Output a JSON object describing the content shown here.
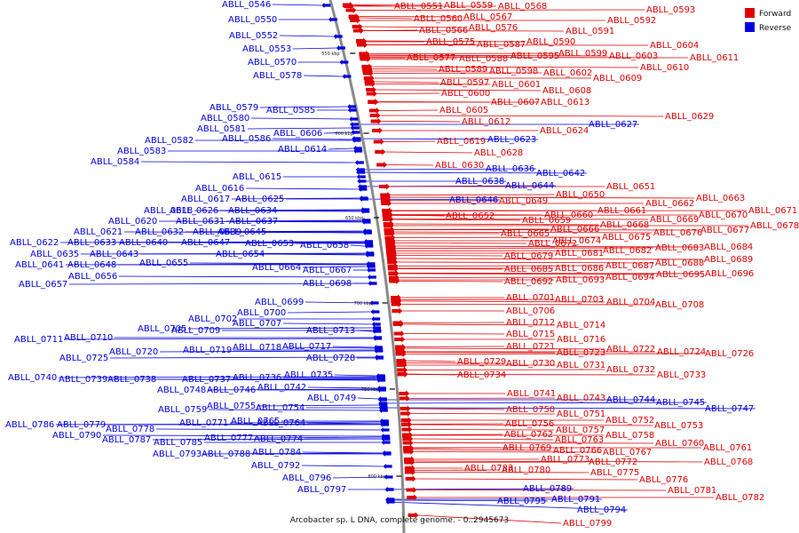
{
  "caption": "Arcobacter sp. L DNA, complete genome. - 0..2945673",
  "legend": {
    "forward": "Forward",
    "reverse": "Reverse"
  },
  "colors": {
    "forward": "#e00000",
    "reverse": "#0000e0",
    "backbone": "#888888"
  },
  "ticks": [
    "550 kbp",
    "600 kbp",
    "650 kbp",
    "700 kbp",
    "750 kbp",
    "800 kbp"
  ],
  "reverse_genes": [
    {
      "label": "ABLL_0546"
    },
    {
      "label": "ABLL_0550"
    },
    {
      "label": "ABLL_0552"
    },
    {
      "label": "ABLL_0553"
    },
    {
      "label": "ABLL_0570"
    },
    {
      "label": "ABLL_0578"
    },
    {
      "label": "ABLL_0579"
    },
    {
      "label": "ABLL_0585"
    },
    {
      "label": "ABLL_0580"
    },
    {
      "label": "ABLL_0581"
    },
    {
      "label": "ABLL_0582"
    },
    {
      "label": "ABLL_0586"
    },
    {
      "label": "ABLL_0606"
    },
    {
      "label": "ABLL_0583"
    },
    {
      "label": "ABLL_0584"
    },
    {
      "label": "ABLL_0614"
    },
    {
      "label": "ABLL_0615"
    },
    {
      "label": "ABLL_0616"
    },
    {
      "label": "ABLL_0617"
    },
    {
      "label": "ABLL_0625"
    },
    {
      "label": "ABLL_0618"
    },
    {
      "label": "ABLL_0626"
    },
    {
      "label": "ABLL_0634"
    },
    {
      "label": "ABLL_0620"
    },
    {
      "label": "ABLL_0631"
    },
    {
      "label": "ABLL_0637"
    },
    {
      "label": "ABLL_0621"
    },
    {
      "label": "ABLL_0632"
    },
    {
      "label": "ABLL_0639"
    },
    {
      "label": "ABLL_0645"
    },
    {
      "label": "ABLL_0622"
    },
    {
      "label": "ABLL_0633"
    },
    {
      "label": "ABLL_0640"
    },
    {
      "label": "ABLL_0647"
    },
    {
      "label": "ABLL_0653"
    },
    {
      "label": "ABLL_0658"
    },
    {
      "label": "ABLL_0635"
    },
    {
      "label": "ABLL_0643"
    },
    {
      "label": "ABLL_0654"
    },
    {
      "label": "ABLL_0641"
    },
    {
      "label": "ABLL_0648"
    },
    {
      "label": "ABLL_0655"
    },
    {
      "label": "ABLL_0664"
    },
    {
      "label": "ABLL_0667"
    },
    {
      "label": "ABLL_0656"
    },
    {
      "label": "ABLL_0657"
    },
    {
      "label": "ABLL_0698"
    },
    {
      "label": "ABLL_0699"
    },
    {
      "label": "ABLL_0700"
    },
    {
      "label": "ABLL_0702"
    },
    {
      "label": "ABLL_0707"
    },
    {
      "label": "ABLL_0705"
    },
    {
      "label": "ABLL_0709"
    },
    {
      "label": "ABLL_0713"
    },
    {
      "label": "ABLL_0711"
    },
    {
      "label": "ABLL_0710"
    },
    {
      "label": "ABLL_0717"
    },
    {
      "label": "ABLL_0720"
    },
    {
      "label": "ABLL_0719"
    },
    {
      "label": "ABLL_0718"
    },
    {
      "label": "ABLL_0725"
    },
    {
      "label": "ABLL_0728"
    },
    {
      "label": "ABLL_0735"
    },
    {
      "label": "ABLL_0740"
    },
    {
      "label": "ABLL_0739"
    },
    {
      "label": "ABLL_0738"
    },
    {
      "label": "ABLL_0737"
    },
    {
      "label": "ABLL_0736"
    },
    {
      "label": "ABLL_0742"
    },
    {
      "label": "ABLL_0748"
    },
    {
      "label": "ABLL_0746"
    },
    {
      "label": "ABLL_0749"
    },
    {
      "label": "ABLL_0755"
    },
    {
      "label": "ABLL_0754"
    },
    {
      "label": "ABLL_0759"
    },
    {
      "label": "ABLL_0771"
    },
    {
      "label": "ABLL_0765"
    },
    {
      "label": "ABLL_0764"
    },
    {
      "label": "ABLL_0786"
    },
    {
      "label": "ABLL_0779"
    },
    {
      "label": "ABLL_0778"
    },
    {
      "label": "ABLL_0777"
    },
    {
      "label": "ABLL_0774"
    },
    {
      "label": "ABLL_0790"
    },
    {
      "label": "ABLL_0787"
    },
    {
      "label": "ABLL_0785"
    },
    {
      "label": "ABLL_0784"
    },
    {
      "label": "ABLL_0793"
    },
    {
      "label": "ABLL_0788"
    },
    {
      "label": "ABLL_0792"
    },
    {
      "label": "ABLL_0796"
    },
    {
      "label": "ABLL_0797"
    },
    {
      "label": "ABLL_0789"
    },
    {
      "label": "ABLL_0795"
    },
    {
      "label": "ABLL_0791"
    },
    {
      "label": "ABLL_0794"
    },
    {
      "label": "ABLL_0623"
    },
    {
      "label": "ABLL_0627"
    },
    {
      "label": "ABLL_0636"
    },
    {
      "label": "ABLL_0642"
    },
    {
      "label": "ABLL_0638"
    },
    {
      "label": "ABLL_0644"
    },
    {
      "label": "ABLL_0646"
    },
    {
      "label": "ABLL_0744"
    },
    {
      "label": "ABLL_0745"
    },
    {
      "label": "ABLL_0747"
    }
  ],
  "forward_genes": [
    {
      "label": "ABLL_0551"
    },
    {
      "label": "ABLL_0559"
    },
    {
      "label": "ABLL_0568"
    },
    {
      "label": "ABLL_0593"
    },
    {
      "label": "ABLL_0560"
    },
    {
      "label": "ABLL_0567"
    },
    {
      "label": "ABLL_0592"
    },
    {
      "label": "ABLL_0566"
    },
    {
      "label": "ABLL_0576"
    },
    {
      "label": "ABLL_0591"
    },
    {
      "label": "ABLL_0575"
    },
    {
      "label": "ABLL_0587"
    },
    {
      "label": "ABLL_0590"
    },
    {
      "label": "ABLL_0604"
    },
    {
      "label": "ABLL_0595"
    },
    {
      "label": "ABLL_0599"
    },
    {
      "label": "ABLL_0603"
    },
    {
      "label": "ABLL_0611"
    },
    {
      "label": "ABLL_0577"
    },
    {
      "label": "ABLL_0588"
    },
    {
      "label": "ABLL_0610"
    },
    {
      "label": "ABLL_0589"
    },
    {
      "label": "ABLL_0598"
    },
    {
      "label": "ABLL_0602"
    },
    {
      "label": "ABLL_0597"
    },
    {
      "label": "ABLL_0601"
    },
    {
      "label": "ABLL_0609"
    },
    {
      "label": "ABLL_0600"
    },
    {
      "label": "ABLL_0608"
    },
    {
      "label": "ABLL_0607"
    },
    {
      "label": "ABLL_0613"
    },
    {
      "label": "ABLL_0605"
    },
    {
      "label": "ABLL_0629"
    },
    {
      "label": "ABLL_0612"
    },
    {
      "label": "ABLL_0624"
    },
    {
      "label": "ABLL_0619"
    },
    {
      "label": "ABLL_0628"
    },
    {
      "label": "ABLL_0630"
    },
    {
      "label": "ABLL_0651"
    },
    {
      "label": "ABLL_0650"
    },
    {
      "label": "ABLL_0663"
    },
    {
      "label": "ABLL_0649"
    },
    {
      "label": "ABLL_0662"
    },
    {
      "label": "ABLL_0671"
    },
    {
      "label": "ABLL_0652"
    },
    {
      "label": "ABLL_0660"
    },
    {
      "label": "ABLL_0661"
    },
    {
      "label": "ABLL_0670"
    },
    {
      "label": "ABLL_0659"
    },
    {
      "label": "ABLL_0669"
    },
    {
      "label": "ABLL_0678"
    },
    {
      "label": "ABLL_0666"
    },
    {
      "label": "ABLL_0668"
    },
    {
      "label": "ABLL_0677"
    },
    {
      "label": "ABLL_0665"
    },
    {
      "label": "ABLL_0675"
    },
    {
      "label": "ABLL_0676"
    },
    {
      "label": "ABLL_0672"
    },
    {
      "label": "ABLL_0674"
    },
    {
      "label": "ABLL_0683"
    },
    {
      "label": "ABLL_0684"
    },
    {
      "label": "ABLL_0679"
    },
    {
      "label": "ABLL_0681"
    },
    {
      "label": "ABLL_0682"
    },
    {
      "label": "ABLL_0689"
    },
    {
      "label": "ABLL_0685"
    },
    {
      "label": "ABLL_0686"
    },
    {
      "label": "ABLL_0687"
    },
    {
      "label": "ABLL_0688"
    },
    {
      "label": "ABLL_0692"
    },
    {
      "label": "ABLL_0693"
    },
    {
      "label": "ABLL_0694"
    },
    {
      "label": "ABLL_0695"
    },
    {
      "label": "ABLL_0696"
    },
    {
      "label": "ABLL_0701"
    },
    {
      "label": "ABLL_0703"
    },
    {
      "label": "ABLL_0704"
    },
    {
      "label": "ABLL_0708"
    },
    {
      "label": "ABLL_0706"
    },
    {
      "label": "ABLL_0712"
    },
    {
      "label": "ABLL_0714"
    },
    {
      "label": "ABLL_0715"
    },
    {
      "label": "ABLL_0716"
    },
    {
      "label": "ABLL_0721"
    },
    {
      "label": "ABLL_0722"
    },
    {
      "label": "ABLL_0723"
    },
    {
      "label": "ABLL_0724"
    },
    {
      "label": "ABLL_0726"
    },
    {
      "label": "ABLL_0729"
    },
    {
      "label": "ABLL_0730"
    },
    {
      "label": "ABLL_0731"
    },
    {
      "label": "ABLL_0732"
    },
    {
      "label": "ABLL_0734"
    },
    {
      "label": "ABLL_0733"
    },
    {
      "label": "ABLL_0741"
    },
    {
      "label": "ABLL_0743"
    },
    {
      "label": "ABLL_0750"
    },
    {
      "label": "ABLL_0751"
    },
    {
      "label": "ABLL_0752"
    },
    {
      "label": "ABLL_0756"
    },
    {
      "label": "ABLL_0753"
    },
    {
      "label": "ABLL_0757"
    },
    {
      "label": "ABLL_0758"
    },
    {
      "label": "ABLL_0762"
    },
    {
      "label": "ABLL_0763"
    },
    {
      "label": "ABLL_0760"
    },
    {
      "label": "ABLL_0761"
    },
    {
      "label": "ABLL_0769"
    },
    {
      "label": "ABLL_0766"
    },
    {
      "label": "ABLL_0767"
    },
    {
      "label": "ABLL_0773"
    },
    {
      "label": "ABLL_0772"
    },
    {
      "label": "ABLL_0768"
    },
    {
      "label": "ABLL_0775"
    },
    {
      "label": "ABLL_0783"
    },
    {
      "label": "ABLL_0780"
    },
    {
      "label": "ABLL_0776"
    },
    {
      "label": "ABLL_0781"
    },
    {
      "label": "ABLL_0782"
    },
    {
      "label": "ABLL_0799"
    }
  ]
}
